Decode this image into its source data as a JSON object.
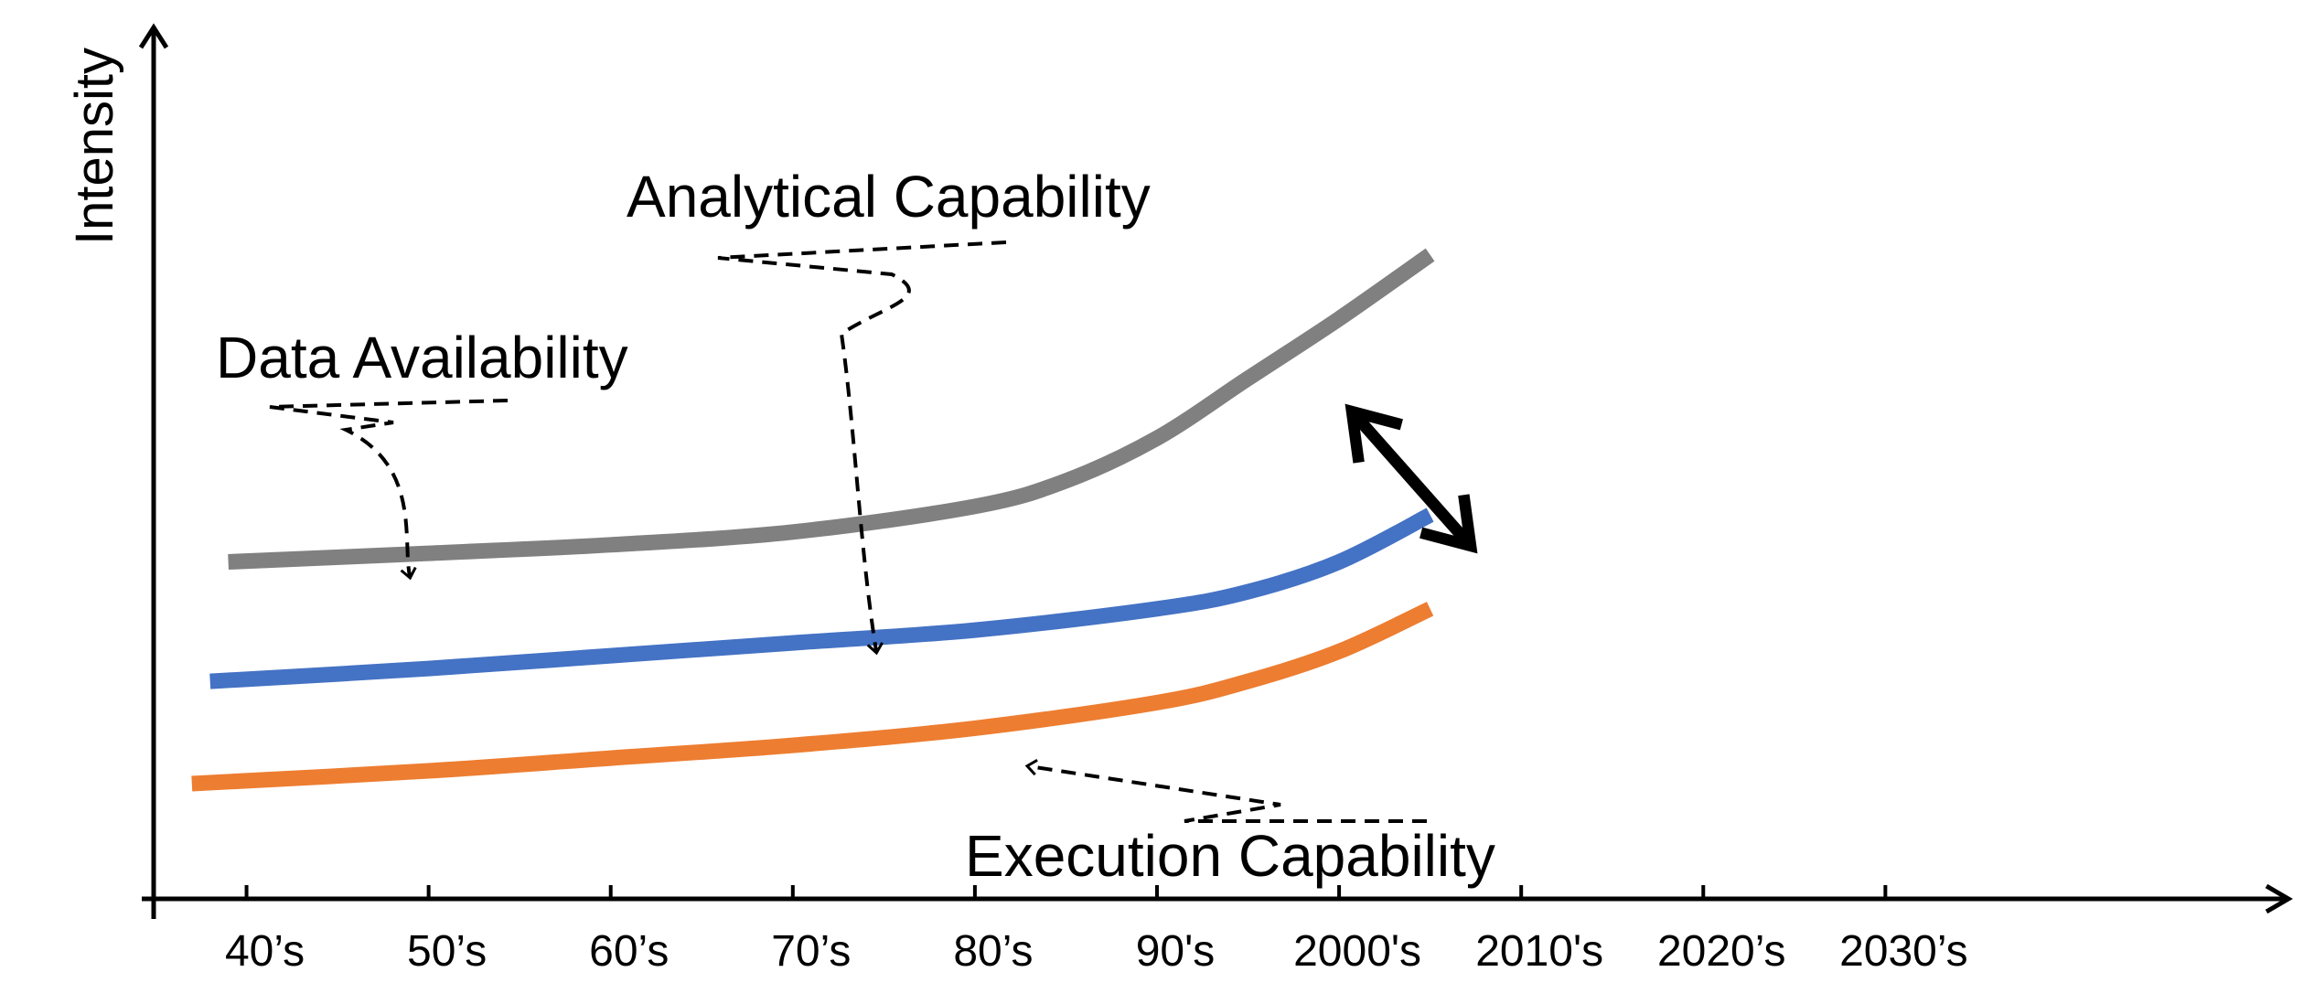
{
  "chart_data": {
    "type": "line",
    "title": "",
    "xlabel": "",
    "ylabel": "Intensity",
    "categories": [
      "40’s",
      "50’s",
      "60’s",
      "70’s",
      "80’s",
      "90's",
      "2000's",
      "2010's",
      "2020’s",
      "2030’s"
    ],
    "x_range": [
      1935,
      2045
    ],
    "y_range": [
      0,
      100
    ],
    "grid": false,
    "legend": "none",
    "series": [
      {
        "name": "Data Availability",
        "color": "#808080",
        "points": [
          [
            1939,
            39.5
          ],
          [
            1950,
            40.5
          ],
          [
            1960,
            41.5
          ],
          [
            1970,
            43
          ],
          [
            1980,
            46
          ],
          [
            1985,
            49
          ],
          [
            1990,
            54
          ],
          [
            1995,
            61
          ],
          [
            2000,
            68
          ],
          [
            2005,
            75.5
          ]
        ]
      },
      {
        "name": "Analytical Capability",
        "color": "#4472C4",
        "points": [
          [
            1938,
            25.5
          ],
          [
            1950,
            27
          ],
          [
            1960,
            28.5
          ],
          [
            1970,
            30
          ],
          [
            1980,
            31.5
          ],
          [
            1990,
            34
          ],
          [
            1995,
            36
          ],
          [
            2000,
            39.5
          ],
          [
            2005,
            45
          ]
        ]
      },
      {
        "name": "Execution Capability",
        "color": "#ED7D31",
        "points": [
          [
            1937,
            13.5
          ],
          [
            1950,
            15
          ],
          [
            1960,
            16.5
          ],
          [
            1970,
            18
          ],
          [
            1980,
            20
          ],
          [
            1990,
            23
          ],
          [
            1995,
            25.5
          ],
          [
            2000,
            29
          ],
          [
            2005,
            34
          ]
        ]
      }
    ],
    "annotations": [
      {
        "text": "Data Availability",
        "target_series": "Data Availability"
      },
      {
        "text": "Analytical Capability",
        "target_series": "Analytical Capability"
      },
      {
        "text": "Execution Capability",
        "target_series": "Execution Capability"
      }
    ],
    "gap_indicator": {
      "type": "double-arrow",
      "between": [
        "Data Availability",
        "Analytical Capability"
      ]
    }
  }
}
